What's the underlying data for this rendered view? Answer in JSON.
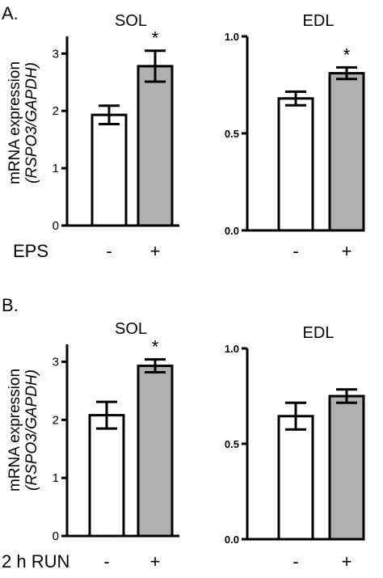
{
  "figure": {
    "panels": [
      {
        "label": "A.",
        "condition_label": "EPS",
        "ylabel_line1": "mRNA expression",
        "ylabel_line2": "(RSPO3/GAPDH)"
      },
      {
        "label": "B.",
        "condition_label": "2 h RUN",
        "ylabel_line1": "mRNA expression",
        "ylabel_line2": "(RSPO3/GAPDH)"
      }
    ]
  },
  "colors": {
    "control_bar": "#ffffff",
    "treated_bar": "#b0b0b0",
    "axis": "#000000"
  },
  "chart_data": [
    {
      "type": "bar",
      "title": "SOL",
      "panel": "A.",
      "categories": [
        "-",
        "+"
      ],
      "values": [
        1.93,
        2.78
      ],
      "errors": [
        0.16,
        0.27
      ],
      "significant": [
        "",
        "*"
      ],
      "ylim": [
        0,
        3.3
      ],
      "yticks": [
        0,
        1,
        2,
        3
      ],
      "ytick_labels": [
        "0",
        "1",
        "2",
        "3"
      ],
      "xlabel": "EPS",
      "ylabel": "mRNA expression (RSPO3/GAPDH)"
    },
    {
      "type": "bar",
      "title": "EDL",
      "panel": "A.",
      "categories": [
        "-",
        "+"
      ],
      "values": [
        0.68,
        0.81
      ],
      "errors": [
        0.035,
        0.03
      ],
      "significant": [
        "",
        "*"
      ],
      "ylim": [
        0,
        1.0
      ],
      "yticks": [
        0,
        0.5,
        1.0
      ],
      "ytick_labels": [
        "0.0",
        "0.5",
        "1.0"
      ],
      "xlabel": "",
      "ylabel": ""
    },
    {
      "type": "bar",
      "title": "SOL",
      "panel": "B.",
      "categories": [
        "-",
        "+"
      ],
      "values": [
        2.08,
        2.93
      ],
      "errors": [
        0.23,
        0.11
      ],
      "significant": [
        "",
        "*"
      ],
      "ylim": [
        0,
        3.3
      ],
      "yticks": [
        0,
        1,
        2,
        3
      ],
      "ytick_labels": [
        "0",
        "1",
        "2",
        "3"
      ],
      "xlabel": "2 h RUN",
      "ylabel": "mRNA expression (RSPO3/GAPDH)"
    },
    {
      "type": "bar",
      "title": "EDL",
      "panel": "B.",
      "categories": [
        "-",
        "+"
      ],
      "values": [
        0.645,
        0.75
      ],
      "errors": [
        0.07,
        0.035
      ],
      "significant": [
        "",
        ""
      ],
      "ylim": [
        0,
        1.0
      ],
      "yticks": [
        0,
        0.5,
        1.0
      ],
      "ytick_labels": [
        "0.0",
        "0.5",
        "1.0"
      ],
      "xlabel": "",
      "ylabel": ""
    }
  ]
}
